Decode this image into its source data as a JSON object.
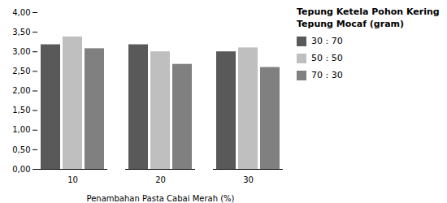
{
  "chart_data": {
    "type": "bar",
    "categories": [
      "10",
      "20",
      "30"
    ],
    "series": [
      {
        "name": "30 : 70",
        "color": "#595959",
        "values": [
          3.18,
          3.18,
          3.0
        ]
      },
      {
        "name": "50 : 50",
        "color": "#bfbfbf",
        "values": [
          3.38,
          3.0,
          3.1
        ]
      },
      {
        "name": "70 : 30",
        "color": "#808080",
        "values": [
          3.08,
          2.68,
          2.6
        ]
      }
    ],
    "xlabel": "Penambahan Pasta Cabai Merah (%)",
    "ylim": [
      0,
      4.0
    ],
    "yticks": [
      {
        "value": 0.0,
        "label": "0,00"
      },
      {
        "value": 0.5,
        "label": "0,50"
      },
      {
        "value": 1.0,
        "label": "1,00"
      },
      {
        "value": 1.5,
        "label": "1,50"
      },
      {
        "value": 2.0,
        "label": "2,00"
      },
      {
        "value": 2.5,
        "label": "2,50"
      },
      {
        "value": 3.0,
        "label": "3,00"
      },
      {
        "value": 3.5,
        "label": "3,50"
      },
      {
        "value": 4.0,
        "label": "4,00"
      }
    ],
    "grid": false,
    "legend": "right",
    "legend_title": [
      "Tepung Ketela Pohon Kering",
      "Tepung Mocaf (gram)"
    ]
  }
}
